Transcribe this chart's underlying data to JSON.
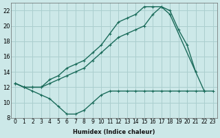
{
  "xlabel": "Humidex (Indice chaleur)",
  "bg_color": "#cce8e8",
  "grid_color": "#aacece",
  "line_color": "#1a6b5a",
  "xlim": [
    -0.5,
    23.5
  ],
  "ylim": [
    8,
    23
  ],
  "xtick_labels": [
    "0",
    "1",
    "2",
    "3",
    "4",
    "5",
    "6",
    "7",
    "8",
    "9",
    "10",
    "11",
    "12",
    "13",
    "14",
    "15",
    "16",
    "17",
    "18",
    "19",
    "20",
    "21",
    "22",
    "23"
  ],
  "ytick_vals": [
    8,
    10,
    12,
    14,
    16,
    18,
    20,
    22
  ],
  "ytick_labels": [
    "8",
    "10",
    "12",
    "14",
    "16",
    "18",
    "20",
    "22"
  ],
  "lineA_x": [
    0,
    1,
    2,
    3,
    4,
    5,
    6,
    7,
    8,
    9,
    10,
    11,
    12,
    13,
    14,
    15,
    16,
    17,
    18,
    22
  ],
  "lineA_y": [
    12.5,
    12.0,
    12.0,
    12.0,
    13.0,
    13.5,
    14.5,
    15.0,
    15.5,
    16.5,
    17.5,
    19.0,
    20.5,
    21.0,
    21.5,
    22.5,
    22.5,
    22.5,
    21.5,
    11.5
  ],
  "lineB_x": [
    0,
    1,
    2,
    3,
    4,
    5,
    6,
    7,
    8,
    9,
    10,
    11,
    12,
    13,
    14,
    15,
    16,
    17,
    18,
    19,
    20,
    21
  ],
  "lineB_y": [
    12.5,
    12.0,
    12.0,
    12.0,
    12.5,
    13.0,
    13.5,
    14.0,
    14.5,
    15.5,
    16.5,
    17.5,
    18.5,
    19.0,
    19.5,
    20.0,
    21.5,
    22.5,
    22.0,
    19.5,
    17.5,
    14.0
  ],
  "lineC_x": [
    0,
    1,
    2,
    3,
    4,
    5,
    6,
    7,
    8,
    9,
    10,
    11,
    12,
    13,
    14,
    15,
    16,
    17,
    18,
    19,
    20,
    21,
    22,
    23
  ],
  "lineC_y": [
    12.5,
    12.0,
    11.5,
    11.0,
    10.5,
    9.5,
    8.5,
    8.5,
    9.0,
    10.0,
    11.0,
    11.5,
    11.5,
    11.5,
    11.5,
    11.5,
    11.5,
    11.5,
    11.5,
    11.5,
    11.5,
    11.5,
    11.5,
    11.5
  ]
}
